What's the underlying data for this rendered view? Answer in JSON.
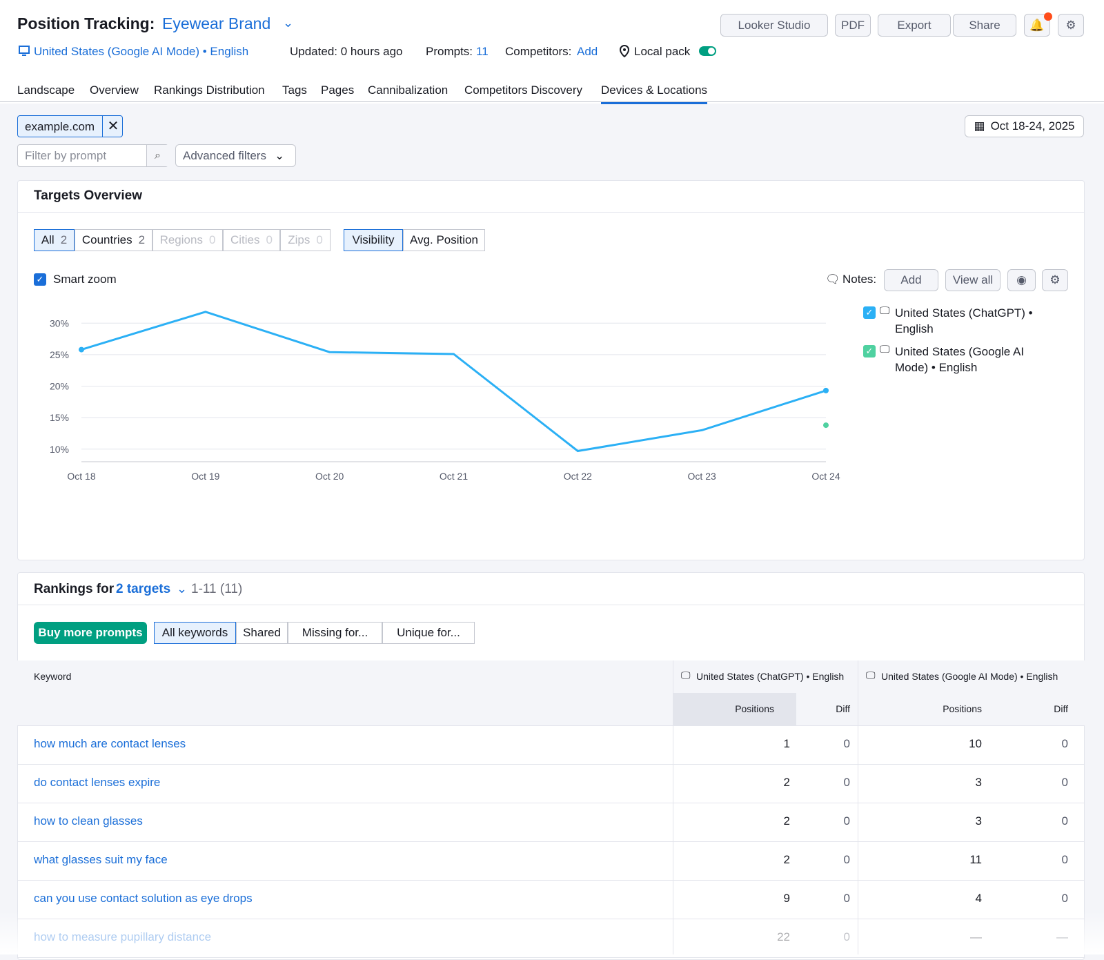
{
  "header": {
    "title": "Position Tracking:",
    "project": "Eyewear Brand",
    "location": "United States (Google AI Mode) • English",
    "updated": "Updated: 0 hours ago",
    "prompts_label": "Prompts:",
    "prompts_value": 11,
    "competitors_label": "Competitors:",
    "competitors_value": "Add",
    "local_pack": "Local pack",
    "buttons": [
      "Looker Studio",
      "PDF",
      "Export",
      "Share"
    ]
  },
  "tabs": {
    "items": [
      "Landscape",
      "Overview",
      "Rankings Distribution",
      "Tags",
      "Pages",
      "Cannibalization",
      "Competitors Discovery",
      "Devices & Locations"
    ],
    "active": 7
  },
  "filters": {
    "domain": "example.com",
    "search_placeholder": "Filter by prompt",
    "advanced": "Advanced filters",
    "date_range": "Oct 18-24, 2025"
  },
  "targets_overview": {
    "title": "Targets Overview",
    "segments": [
      {
        "label": "All",
        "count": 2
      },
      {
        "label": "Countries",
        "count": 2
      },
      {
        "label": "Regions",
        "count": 0
      },
      {
        "label": "Cities",
        "count": 0
      },
      {
        "label": "Zips",
        "count": 0
      }
    ],
    "metrics": [
      "Visibility",
      "Avg. Position"
    ],
    "smart_zoom": "Smart zoom",
    "notes_label": "Notes:",
    "notes_buttons": [
      "Add",
      "View all"
    ]
  },
  "chart_data": {
    "type": "line",
    "categories": [
      "Oct 18",
      "Oct 19",
      "Oct 20",
      "Oct 21",
      "Oct 22",
      "Oct 23",
      "Oct 24"
    ],
    "series": [
      {
        "name": "United States (ChatGPT) • English",
        "color": "#2bb0f5",
        "values": [
          25.8,
          31.8,
          25.4,
          25.1,
          9.7,
          13.0,
          19.3
        ]
      },
      {
        "name": "United States (Google AI Mode) • English",
        "color": "#4fd1a0",
        "values": [
          null,
          null,
          null,
          null,
          null,
          null,
          13.8
        ]
      }
    ],
    "ylim": [
      8,
      32
    ],
    "yticks": [
      {
        "value": 10,
        "label": "10%"
      },
      {
        "value": 15,
        "label": "15%"
      },
      {
        "value": 20,
        "label": "20%"
      },
      {
        "value": 25,
        "label": "25%"
      },
      {
        "value": 30,
        "label": "30%"
      }
    ],
    "grid": true
  },
  "rankings": {
    "title": "Rankings for",
    "targets": "2 targets",
    "range": "1-11 (11)",
    "buy": "Buy more prompts",
    "filters": [
      "All keywords",
      "Shared",
      "Missing for...",
      "Unique for..."
    ],
    "columns": {
      "keyword": "Keyword",
      "groups": [
        {
          "name": "United States (ChatGPT) • English",
          "sub": [
            "Positions",
            "Diff"
          ]
        },
        {
          "name": "United States (Google AI Mode) • English",
          "sub": [
            "Positions",
            "Diff"
          ]
        }
      ]
    },
    "rows": [
      [
        "how much are contact lenses",
        1,
        0,
        10,
        0
      ],
      [
        "do contact lenses expire",
        2,
        0,
        3,
        0
      ],
      [
        "how to clean glasses",
        2,
        0,
        3,
        0
      ],
      [
        "what glasses suit my face",
        2,
        0,
        11,
        0
      ],
      [
        "can you use contact solution as eye drops",
        9,
        0,
        4,
        0
      ],
      [
        "how to measure pupillary distance",
        22,
        0,
        "—",
        "—"
      ]
    ]
  }
}
